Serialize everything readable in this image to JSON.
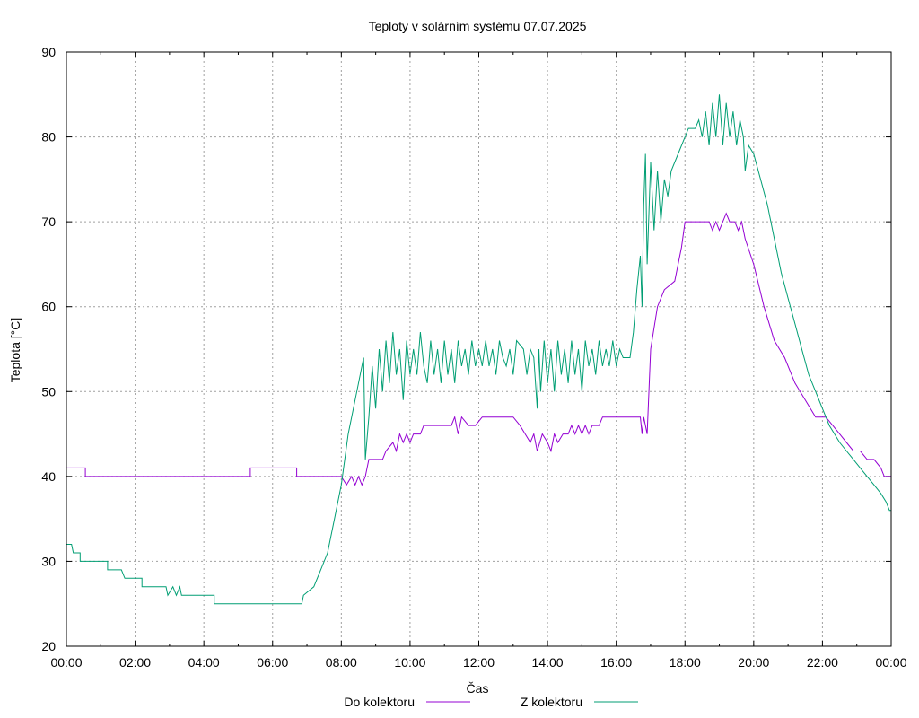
{
  "chart_data": {
    "type": "line",
    "title": "Teploty v solárním systému 07.07.2025",
    "xlabel": "Čas",
    "ylabel": "Teplota [°C]",
    "xlim": [
      0,
      24
    ],
    "ylim": [
      20,
      90
    ],
    "x_ticks": [
      "00:00",
      "02:00",
      "04:00",
      "06:00",
      "08:00",
      "10:00",
      "12:00",
      "14:00",
      "16:00",
      "18:00",
      "20:00",
      "22:00",
      "00:00"
    ],
    "y_ticks": [
      20,
      30,
      40,
      50,
      60,
      70,
      80,
      90
    ],
    "grid": true,
    "legend_position": "bottom-center",
    "series": [
      {
        "name": "Do kolektoru",
        "color": "#9400D3",
        "points": [
          [
            0,
            41
          ],
          [
            0.55,
            41
          ],
          [
            0.55,
            40
          ],
          [
            5.35,
            40
          ],
          [
            5.35,
            41
          ],
          [
            6.7,
            41
          ],
          [
            6.7,
            40
          ],
          [
            8.0,
            40
          ],
          [
            8.15,
            39
          ],
          [
            8.3,
            40
          ],
          [
            8.4,
            39
          ],
          [
            8.5,
            40
          ],
          [
            8.6,
            39
          ],
          [
            8.7,
            40
          ],
          [
            8.8,
            42
          ],
          [
            9.2,
            42
          ],
          [
            9.3,
            43
          ],
          [
            9.5,
            44
          ],
          [
            9.6,
            43
          ],
          [
            9.7,
            45
          ],
          [
            9.8,
            44
          ],
          [
            9.9,
            45
          ],
          [
            10.0,
            44
          ],
          [
            10.1,
            45
          ],
          [
            10.3,
            45
          ],
          [
            10.4,
            46
          ],
          [
            11.2,
            46
          ],
          [
            11.3,
            47
          ],
          [
            11.4,
            45
          ],
          [
            11.5,
            47
          ],
          [
            11.7,
            46
          ],
          [
            11.9,
            46
          ],
          [
            12.1,
            47
          ],
          [
            13.0,
            47
          ],
          [
            13.2,
            46
          ],
          [
            13.35,
            45
          ],
          [
            13.5,
            44
          ],
          [
            13.6,
            45
          ],
          [
            13.7,
            43
          ],
          [
            13.85,
            45
          ],
          [
            14.0,
            44
          ],
          [
            14.1,
            43
          ],
          [
            14.2,
            45
          ],
          [
            14.3,
            44
          ],
          [
            14.45,
            45
          ],
          [
            14.6,
            45
          ],
          [
            14.7,
            46
          ],
          [
            14.8,
            45
          ],
          [
            14.9,
            46
          ],
          [
            15.0,
            45
          ],
          [
            15.1,
            46
          ],
          [
            15.2,
            45
          ],
          [
            15.3,
            46
          ],
          [
            15.5,
            46
          ],
          [
            15.6,
            47
          ],
          [
            16.7,
            47
          ],
          [
            16.75,
            45
          ],
          [
            16.8,
            47
          ],
          [
            16.9,
            45
          ],
          [
            17.0,
            55
          ],
          [
            17.2,
            60
          ],
          [
            17.4,
            62
          ],
          [
            17.7,
            63
          ],
          [
            17.9,
            67
          ],
          [
            18.0,
            70
          ],
          [
            18.7,
            70
          ],
          [
            18.8,
            69
          ],
          [
            18.9,
            70
          ],
          [
            19.0,
            69
          ],
          [
            19.1,
            70
          ],
          [
            19.2,
            71
          ],
          [
            19.3,
            70
          ],
          [
            19.45,
            70
          ],
          [
            19.55,
            69
          ],
          [
            19.65,
            70
          ],
          [
            19.75,
            68
          ],
          [
            20.0,
            65
          ],
          [
            20.3,
            60
          ],
          [
            20.6,
            56
          ],
          [
            20.9,
            54
          ],
          [
            21.2,
            51
          ],
          [
            21.5,
            49
          ],
          [
            21.8,
            47
          ],
          [
            22.1,
            47
          ],
          [
            22.3,
            46
          ],
          [
            22.5,
            45
          ],
          [
            22.7,
            44
          ],
          [
            22.9,
            43
          ],
          [
            23.1,
            43
          ],
          [
            23.3,
            42
          ],
          [
            23.5,
            42
          ],
          [
            23.7,
            41
          ],
          [
            23.8,
            40
          ],
          [
            24.0,
            40
          ]
        ]
      },
      {
        "name": "Z kolektoru",
        "color": "#009E73",
        "points": [
          [
            0,
            32
          ],
          [
            0.15,
            32
          ],
          [
            0.2,
            31
          ],
          [
            0.4,
            31
          ],
          [
            0.4,
            30
          ],
          [
            1.2,
            30
          ],
          [
            1.2,
            29
          ],
          [
            1.6,
            29
          ],
          [
            1.7,
            28
          ],
          [
            2.2,
            28
          ],
          [
            2.2,
            27
          ],
          [
            2.9,
            27
          ],
          [
            2.95,
            26
          ],
          [
            3.1,
            27
          ],
          [
            3.2,
            26
          ],
          [
            3.3,
            27
          ],
          [
            3.35,
            26
          ],
          [
            4.3,
            26
          ],
          [
            4.3,
            25
          ],
          [
            6.85,
            25
          ],
          [
            6.9,
            26
          ],
          [
            7.2,
            27
          ],
          [
            7.4,
            29
          ],
          [
            7.6,
            31
          ],
          [
            7.8,
            35
          ],
          [
            8.0,
            39
          ],
          [
            8.2,
            45
          ],
          [
            8.4,
            49
          ],
          [
            8.5,
            51
          ],
          [
            8.6,
            53
          ],
          [
            8.65,
            54
          ],
          [
            8.7,
            42
          ],
          [
            8.8,
            47
          ],
          [
            8.9,
            53
          ],
          [
            9.0,
            48
          ],
          [
            9.1,
            55
          ],
          [
            9.2,
            50
          ],
          [
            9.3,
            56
          ],
          [
            9.4,
            51
          ],
          [
            9.5,
            57
          ],
          [
            9.6,
            52
          ],
          [
            9.7,
            55
          ],
          [
            9.8,
            49
          ],
          [
            9.9,
            56
          ],
          [
            10.0,
            52
          ],
          [
            10.1,
            55
          ],
          [
            10.2,
            52
          ],
          [
            10.3,
            57
          ],
          [
            10.4,
            53
          ],
          [
            10.5,
            51
          ],
          [
            10.6,
            56
          ],
          [
            10.7,
            52
          ],
          [
            10.8,
            55
          ],
          [
            10.9,
            51
          ],
          [
            11.0,
            56
          ],
          [
            11.1,
            52
          ],
          [
            11.2,
            55
          ],
          [
            11.3,
            51
          ],
          [
            11.4,
            56
          ],
          [
            11.5,
            53
          ],
          [
            11.6,
            55
          ],
          [
            11.7,
            52
          ],
          [
            11.8,
            56
          ],
          [
            11.9,
            53
          ],
          [
            12.0,
            55
          ],
          [
            12.1,
            53
          ],
          [
            12.2,
            56
          ],
          [
            12.3,
            53
          ],
          [
            12.4,
            55
          ],
          [
            12.5,
            52
          ],
          [
            12.6,
            56
          ],
          [
            12.7,
            54
          ],
          [
            12.8,
            53
          ],
          [
            12.9,
            55
          ],
          [
            13.0,
            52
          ],
          [
            13.1,
            56
          ],
          [
            13.3,
            55
          ],
          [
            13.4,
            52
          ],
          [
            13.5,
            55
          ],
          [
            13.6,
            54
          ],
          [
            13.7,
            48
          ],
          [
            13.75,
            55
          ],
          [
            13.8,
            50
          ],
          [
            13.9,
            56
          ],
          [
            14.0,
            51
          ],
          [
            14.1,
            55
          ],
          [
            14.2,
            50
          ],
          [
            14.3,
            56
          ],
          [
            14.4,
            52
          ],
          [
            14.5,
            55
          ],
          [
            14.6,
            51
          ],
          [
            14.7,
            56
          ],
          [
            14.8,
            52
          ],
          [
            14.9,
            55
          ],
          [
            15.0,
            50
          ],
          [
            15.1,
            56
          ],
          [
            15.2,
            53
          ],
          [
            15.3,
            55
          ],
          [
            15.4,
            52
          ],
          [
            15.5,
            56
          ],
          [
            15.6,
            53
          ],
          [
            15.7,
            55
          ],
          [
            15.8,
            53
          ],
          [
            15.9,
            56
          ],
          [
            16.0,
            53
          ],
          [
            16.1,
            55
          ],
          [
            16.2,
            54
          ],
          [
            16.4,
            54
          ],
          [
            16.5,
            57
          ],
          [
            16.6,
            62
          ],
          [
            16.7,
            66
          ],
          [
            16.75,
            60
          ],
          [
            16.8,
            72
          ],
          [
            16.85,
            78
          ],
          [
            16.9,
            65
          ],
          [
            17.0,
            77
          ],
          [
            17.1,
            69
          ],
          [
            17.2,
            76
          ],
          [
            17.3,
            70
          ],
          [
            17.4,
            75
          ],
          [
            17.5,
            73
          ],
          [
            17.6,
            76
          ],
          [
            17.8,
            78
          ],
          [
            18.0,
            80
          ],
          [
            18.1,
            81
          ],
          [
            18.3,
            81
          ],
          [
            18.4,
            82
          ],
          [
            18.5,
            80
          ],
          [
            18.6,
            83
          ],
          [
            18.7,
            79
          ],
          [
            18.8,
            84
          ],
          [
            18.9,
            80
          ],
          [
            19.0,
            85
          ],
          [
            19.1,
            79
          ],
          [
            19.2,
            84
          ],
          [
            19.3,
            80
          ],
          [
            19.4,
            83
          ],
          [
            19.5,
            79
          ],
          [
            19.6,
            82
          ],
          [
            19.7,
            80
          ],
          [
            19.75,
            76
          ],
          [
            19.85,
            79
          ],
          [
            20.0,
            78
          ],
          [
            20.2,
            75
          ],
          [
            20.4,
            72
          ],
          [
            20.6,
            68
          ],
          [
            20.8,
            64
          ],
          [
            21.0,
            61
          ],
          [
            21.2,
            58
          ],
          [
            21.4,
            55
          ],
          [
            21.6,
            52
          ],
          [
            21.8,
            50
          ],
          [
            22.0,
            48
          ],
          [
            22.2,
            46
          ],
          [
            22.5,
            44
          ],
          [
            22.7,
            43
          ],
          [
            22.9,
            42
          ],
          [
            23.1,
            41
          ],
          [
            23.3,
            40
          ],
          [
            23.5,
            39
          ],
          [
            23.7,
            38
          ],
          [
            23.85,
            37
          ],
          [
            23.95,
            36
          ],
          [
            24.0,
            36
          ]
        ]
      }
    ]
  }
}
